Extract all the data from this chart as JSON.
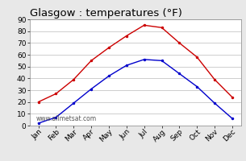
{
  "title": "Glasgow : temperatures (°F)",
  "months": [
    "Jan",
    "Feb",
    "Mar",
    "Apr",
    "May",
    "Jun",
    "Jul",
    "Aug",
    "Sep",
    "Oct",
    "Nov",
    "Dec"
  ],
  "high_temps": [
    20,
    27,
    39,
    55,
    66,
    76,
    85,
    83,
    70,
    58,
    39,
    24
  ],
  "low_temps": [
    2,
    7,
    19,
    31,
    42,
    51,
    56,
    55,
    44,
    33,
    19,
    6
  ],
  "high_color": "#cc0000",
  "low_color": "#0000cc",
  "bg_color": "#e8e8e8",
  "plot_bg_color": "#ffffff",
  "grid_color": "#bbbbbb",
  "ylim": [
    0,
    90
  ],
  "yticks": [
    0,
    10,
    20,
    30,
    40,
    50,
    60,
    70,
    80,
    90
  ],
  "watermark": "www.allmetsat.com",
  "title_fontsize": 9.5,
  "tick_fontsize": 6.5,
  "watermark_fontsize": 5.5
}
